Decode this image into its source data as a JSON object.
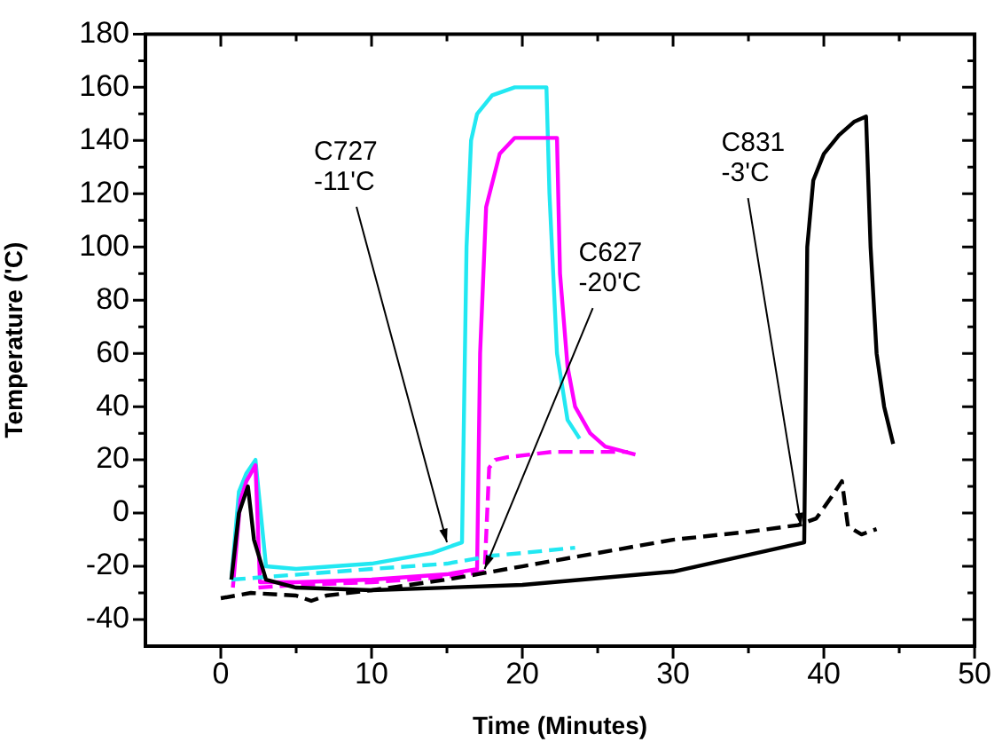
{
  "chart_data": {
    "type": "line",
    "xlabel": "Time (Minutes)",
    "ylabel": "Temperature ('C)",
    "xlim": [
      -5,
      50
    ],
    "xticks": [
      0,
      {
        "value": 5,
        "label": null
      },
      10,
      {
        "value": 15,
        "label": null
      },
      20,
      {
        "value": 25,
        "label": null
      },
      30,
      {
        "value": 35,
        "label": null
      },
      40,
      {
        "value": 45,
        "label": null
      },
      50
    ],
    "ylim": [
      -50,
      180
    ],
    "yticks": [
      -40,
      {
        "value": -30,
        "label": null
      },
      -20,
      {
        "value": -10,
        "label": null
      },
      0,
      {
        "value": 10,
        "label": null
      },
      20,
      {
        "value": 30,
        "label": null
      },
      40,
      {
        "value": 50,
        "label": null
      },
      60,
      {
        "value": 70,
        "label": null
      },
      80,
      {
        "value": 90,
        "label": null
      },
      100,
      {
        "value": 110,
        "label": null
      },
      120,
      {
        "value": 130,
        "label": null
      },
      140,
      {
        "value": 150,
        "label": null
      },
      160,
      {
        "value": 170,
        "label": null
      },
      180
    ],
    "grid": false,
    "legend": false,
    "marker": "none",
    "series": [
      {
        "color": "#000000",
        "line_style": "dashed",
        "x": [
          0,
          2,
          5,
          6,
          7,
          10,
          15,
          20,
          25,
          30,
          35,
          38.3,
          39.5,
          40.5,
          41.2,
          41.6,
          42.5,
          43.5
        ],
        "values": [
          -32,
          -30,
          -31,
          -33,
          -31,
          -29,
          -25,
          -20,
          -15,
          -10,
          -7,
          -4.5,
          -2,
          6,
          12,
          -5,
          -8,
          -6
        ]
      },
      {
        "color": "#000000",
        "line_style": "solid",
        "x": [
          0.7,
          1.2,
          1.8,
          2.2,
          3,
          5,
          10,
          20,
          30,
          38.7,
          38.9,
          39.3,
          40,
          41,
          42,
          42.8,
          43.1,
          43.5,
          44,
          44.6
        ],
        "values": [
          -25,
          0,
          10,
          -10,
          -25,
          -28,
          -29,
          -27,
          -22,
          -11,
          100,
          125,
          135,
          142,
          147,
          149,
          100,
          60,
          40,
          26
        ]
      },
      {
        "color": "#ff00ff",
        "line_style": "dashed",
        "x": [
          2.5,
          5,
          10,
          15,
          17.5,
          17.8,
          18.2,
          19,
          22,
          27
        ],
        "values": [
          -28,
          -27,
          -26,
          -24,
          -22,
          17,
          20,
          21,
          23,
          23
        ]
      },
      {
        "color": "#22e8f2",
        "line_style": "dashed",
        "x": [
          0.7,
          3,
          10,
          15,
          17,
          18,
          20,
          23.5
        ],
        "values": [
          -25,
          -24,
          -21,
          -19,
          -17,
          -16,
          -15,
          -13
        ]
      },
      {
        "color": "#ff00ff",
        "line_style": "solid",
        "x": [
          0.8,
          1.3,
          1.7,
          2.3,
          2.6,
          5,
          10,
          15,
          17,
          17.2,
          17.6,
          18.5,
          19.5,
          22.3,
          22.5,
          23,
          23.5,
          24.5,
          25.5,
          27.5
        ],
        "values": [
          -28,
          5,
          12,
          18,
          -26,
          -26,
          -25,
          -23,
          -21,
          60,
          115,
          135,
          141,
          141,
          90,
          55,
          40,
          30,
          25,
          22
        ]
      },
      {
        "color": "#22e8f2",
        "line_style": "solid",
        "x": [
          0.7,
          1.2,
          1.7,
          2.3,
          3,
          5,
          10,
          14,
          16,
          16.3,
          16.6,
          17,
          18,
          19.5,
          21.6,
          21.8,
          22.3,
          23,
          23.8
        ],
        "values": [
          -25,
          8,
          15,
          20,
          -20,
          -21,
          -19,
          -15,
          -11,
          100,
          140,
          150,
          157,
          160,
          160,
          120,
          60,
          35,
          28
        ]
      }
    ],
    "annotations": [
      {
        "text": "C727\n-11'C",
        "x": 15,
        "y": -11
      },
      {
        "text": "C627\n-20'C",
        "x": 17.5,
        "y": -21
      },
      {
        "text": "C831\n-3'C",
        "x": 38.5,
        "y": -5
      }
    ]
  }
}
